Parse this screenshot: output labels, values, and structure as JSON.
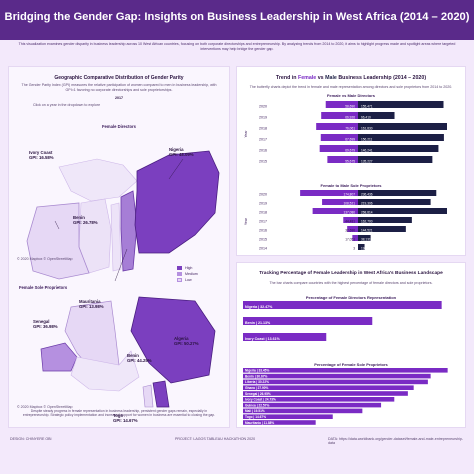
{
  "header": {
    "title": "Bridging the Gender Gap: Insights on Business Leadership in West Africa (2014 – 2020)",
    "intro": "This visualization examines gender disparity in business leadership across 10 West African countries, focusing on both corporate directorships and entrepreneurship. By analyzing trends from 2014 to 2020, it aims to highlight progress made and spotlight areas where targeted interventions may help bridge the gender gap."
  },
  "left": {
    "title": "Geographic Comparative Distribution of Gender Parity",
    "note": "The Gender Parity Index (GPI) measures the relative participation of women compared to men in business leadership, with GPI=1 favoring no corporate directorships and sole proprietorships.",
    "year": "2017",
    "hint": "Click on a year in the dropdown to explore",
    "map1_title": "Female Directors",
    "map1_callouts": [
      {
        "country": "Nigeria",
        "gpi": "GPI: 48.09%"
      },
      {
        "country": "Ivory Coast",
        "gpi": "GPI: 16.58%"
      },
      {
        "country": "Benin",
        "gpi": "GPI: 26.78%"
      }
    ],
    "map_credit": "© 2020 Mapbox © OpenStreetMap",
    "legend": [
      {
        "label": "High",
        "color": "#7b3fbf"
      },
      {
        "label": "Medium",
        "color": "#b590e0"
      },
      {
        "label": "Low",
        "color": "#e6d8f5"
      }
    ],
    "map2_title": "Female Sole Proprietors",
    "map2_callouts": [
      {
        "country": "Mauritania",
        "gpi": "GPI: 13.98%"
      },
      {
        "country": "Senegal",
        "gpi": "GPI: 36.98%"
      },
      {
        "country": "Algeria",
        "gpi": "GPI: 50.27%"
      },
      {
        "country": "Benin",
        "gpi": "GPI: 44.25%"
      },
      {
        "country": "Togo",
        "gpi": "GPI: 14.67%"
      }
    ],
    "map2_credit": "© 2020 Mapbox © OpenStreetMap",
    "bottom_note": "Despite steady progress in female representation in business leadership, persistent gender gaps remain, especially in entrepreneurship. Strategic policy implementation and increased support for women in business are essential to closing the gap."
  },
  "trend": {
    "title_a": "Trend in ",
    "title_female": "Female",
    "title_b": " vs ",
    "title_male": "Male",
    "title_c": " Business Leadership (2014 – 2020)",
    "desc": "The butterfly charts depict the trend in female and male representation among directors and sole proprietors from 2014 to 2020.",
    "chart1_title": "Female vs Male Directors",
    "chart2_title": "Female to Male Sole Proprietors",
    "axis_label": "Year"
  },
  "pct": {
    "title": "Tracking Percentage of Female Leadership in West Africa's Business Landscape",
    "desc": "The bar charts compare countries with the highest percentage of female directors and sole proprietors.",
    "chart1_title": "Percentage of Female Directors Representation",
    "chart2_title": "Percentage of Female Sole Proprietors"
  },
  "footer": {
    "left": "DESIGN: CHINYERE OBI",
    "center": "PROJECT: LAGOS TABLEAU HACKATHON 2020",
    "right": "DATA: https://data.worldbank.org/gender-dataset/female-and-male-entrepreneurship-data"
  },
  "colors": {
    "female": "#7a2bc4",
    "male": "#1c1f45",
    "accent": "#5a2a8a"
  },
  "chart_data": [
    {
      "type": "bar",
      "title": "Female vs Male Directors",
      "ylabel": "Year",
      "categories": [
        "2020",
        "2019",
        "2018",
        "2017",
        "2016",
        "2015"
      ],
      "series": [
        {
          "name": "Female",
          "values": [
            58690,
            66926,
            76061,
            67699,
            69679,
            55675
          ]
        },
        {
          "name": "Male",
          "values": [
            155471,
            66410,
            161830,
            156211,
            146241,
            135227
          ]
        }
      ]
    },
    {
      "type": "bar",
      "title": "Female to Male Sole Proprietors",
      "ylabel": "Year",
      "categories": [
        "2020",
        "2019",
        "2018",
        "2017",
        "2016",
        "2015",
        "2014"
      ],
      "series": [
        {
          "name": "Female",
          "values": [
            174807,
            108521,
            137080,
            44481,
            32690,
            17051,
            3
          ]
        },
        {
          "name": "Male",
          "values": [
            236436,
            219306,
            268814,
            162700,
            144521,
            38131,
            19787
          ]
        }
      ]
    },
    {
      "type": "bar",
      "title": "Percentage of Female Directors Representation",
      "categories": [
        "Nigeria",
        "Benin",
        "Ivory Coast"
      ],
      "values": [
        32.47,
        21.13,
        13.61
      ],
      "labels": [
        "Nigeria | 32.47%",
        "Benin | 21.13%",
        "Ivory Coast | 13.61%"
      ]
    },
    {
      "type": "bar",
      "title": "Percentage of Female Sole Proprietors",
      "categories": [
        "Nigeria",
        "Benin",
        "Liberia",
        "Ghana",
        "Senegal",
        "Ivory Coast",
        "Guinea",
        "Mali",
        "Togo",
        "Mauritania"
      ],
      "values": [
        33.45,
        30.67,
        30.22,
        27.9,
        26.95,
        24.73,
        22.57,
        19.51,
        14.67,
        11.88
      ],
      "labels": [
        "Nigeria | 33.45%",
        "Benin | 30.67%",
        "Liberia | 30.22%",
        "Ghana | 27.90%",
        "Senegal | 26.95%",
        "Ivory Coast | 24.73%",
        "Guinea | 22.57%",
        "Mali | 19.51%",
        "Togo | 14.67%",
        "Mauritania | 11.88%"
      ]
    }
  ]
}
